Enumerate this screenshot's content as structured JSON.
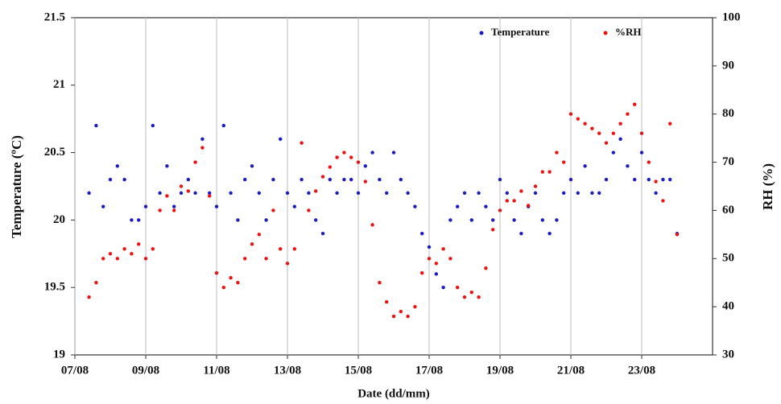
{
  "chart_data": {
    "type": "scatter",
    "x_label": "Date (dd/mm)",
    "y_label": "Temperature (ºC)",
    "y2_label": "RH (%)",
    "xlim": [
      0,
      18
    ],
    "xticks": [
      {
        "value": 0,
        "label": "07/08"
      },
      {
        "value": 2,
        "label": "09/08"
      },
      {
        "value": 4,
        "label": "11/08"
      },
      {
        "value": 6,
        "label": "13/08"
      },
      {
        "value": 8,
        "label": "15/08"
      },
      {
        "value": 10,
        "label": "17/08"
      },
      {
        "value": 12,
        "label": "19/08"
      },
      {
        "value": 14,
        "label": "21/08"
      },
      {
        "value": 16,
        "label": "23/08"
      }
    ],
    "ylim": [
      19,
      21.5
    ],
    "yticks": [
      19,
      19.5,
      20,
      20.5,
      21,
      21.5
    ],
    "y2lim": [
      30,
      100
    ],
    "y2ticks": [
      30,
      40,
      50,
      60,
      70,
      80,
      90,
      100
    ],
    "grid": "x",
    "legend": "top-right",
    "x": [
      0.4,
      0.6,
      0.8,
      1.0,
      1.2,
      1.4,
      1.6,
      1.8,
      2.0,
      2.2,
      2.4,
      2.6,
      2.8,
      3.0,
      3.2,
      3.4,
      3.6,
      3.8,
      4.0,
      4.2,
      4.4,
      4.6,
      4.8,
      5.0,
      5.2,
      5.4,
      5.6,
      5.8,
      6.0,
      6.2,
      6.4,
      6.6,
      6.8,
      7.0,
      7.2,
      7.4,
      7.6,
      7.8,
      8.0,
      8.2,
      8.4,
      8.6,
      8.8,
      9.0,
      9.2,
      9.4,
      9.6,
      9.8,
      10.0,
      10.2,
      10.4,
      10.6,
      10.8,
      11.0,
      11.2,
      11.4,
      11.6,
      11.8,
      12.0,
      12.2,
      12.4,
      12.6,
      12.8,
      13.0,
      13.2,
      13.4,
      13.6,
      13.8,
      14.0,
      14.2,
      14.4,
      14.6,
      14.8,
      15.0,
      15.2,
      15.4,
      15.6,
      15.8,
      16.0,
      16.2,
      16.4,
      16.6,
      16.8,
      17.0
    ],
    "series": [
      {
        "name": "Temperature",
        "color": "#1c1cc0",
        "values": [
          20.2,
          20.7,
          20.1,
          20.3,
          20.4,
          20.3,
          20.0,
          20.0,
          20.1,
          20.7,
          20.2,
          20.4,
          20.1,
          20.2,
          20.3,
          20.2,
          20.6,
          20.2,
          20.1,
          20.7,
          20.2,
          20.0,
          20.3,
          20.4,
          20.2,
          20.0,
          20.3,
          20.6,
          20.2,
          20.1,
          20.3,
          20.2,
          20.0,
          19.9,
          20.3,
          20.2,
          20.3,
          20.3,
          20.2,
          20.4,
          20.5,
          20.3,
          20.2,
          20.5,
          20.3,
          20.2,
          20.1,
          19.9,
          19.8,
          19.6,
          19.5,
          20.0,
          20.1,
          20.2,
          20.0,
          20.2,
          20.1,
          20.0,
          20.3,
          20.2,
          20.0,
          19.9,
          20.1,
          20.2,
          20.0,
          19.9,
          20.0,
          20.2,
          20.3,
          20.2,
          20.4,
          20.2,
          20.2,
          20.3,
          20.5,
          20.6,
          20.4,
          20.3,
          20.5,
          20.3,
          20.2,
          20.3,
          20.3,
          19.9
        ]
      },
      {
        "name": "%RH",
        "color": "#ee1111",
        "axis": "y2",
        "values": [
          42,
          45,
          50,
          51,
          50,
          52,
          51,
          53,
          50,
          52,
          60,
          63,
          60,
          65,
          64,
          70,
          73,
          63,
          47,
          44,
          46,
          45,
          50,
          53,
          55,
          50,
          60,
          52,
          49,
          52,
          74,
          60,
          64,
          67,
          69,
          71,
          72,
          71,
          70,
          66,
          57,
          45,
          41,
          38,
          39,
          38,
          40,
          47,
          50,
          49,
          52,
          50,
          44,
          42,
          43,
          42,
          48,
          56,
          60,
          62,
          62,
          64,
          61,
          65,
          68,
          68,
          72,
          70,
          80,
          79,
          78,
          77,
          76,
          74,
          76,
          78,
          80,
          82,
          76,
          70,
          66,
          62,
          78,
          55
        ]
      }
    ]
  }
}
